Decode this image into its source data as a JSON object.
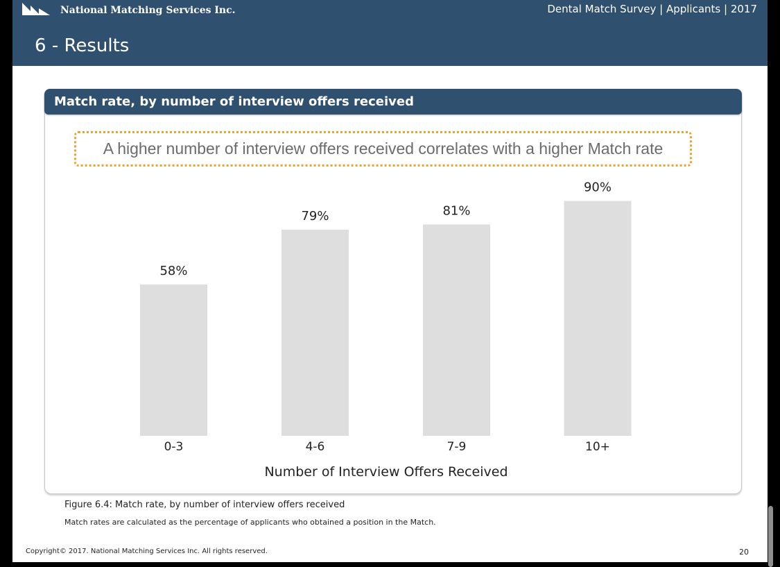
{
  "header": {
    "org_name": "National Matching Services Inc.",
    "report_title": "Dental Match Survey | Applicants | 2017",
    "section_title": "6 - Results",
    "logo_icon": "nms-logo-icon"
  },
  "card": {
    "title": "Match rate, by number of interview offers received",
    "callout": "A higher number of interview offers received correlates with a higher Match rate"
  },
  "chart_data": {
    "type": "bar",
    "categories": [
      "0-3",
      "4-6",
      "7-9",
      "10+"
    ],
    "values": [
      58,
      79,
      81,
      90
    ],
    "value_labels": [
      "58%",
      "79%",
      "81%",
      "90%"
    ],
    "xlabel": "Number of Interview Offers Received",
    "ylabel": "",
    "ylim": [
      0,
      100
    ],
    "grid": false,
    "bar_color": "#dedede"
  },
  "footer": {
    "caption": "Figure 6.4: Match rate, by number of interview offers received",
    "note": "Match rates are calculated as the percentage of applicants who obtained a position in the Match.",
    "copyright": "Copyright© 2017. National Matching Services Inc. All rights reserved.",
    "page_number": "20"
  },
  "colors": {
    "header_bg": "#30506f",
    "callout_border": "#f0a030"
  }
}
